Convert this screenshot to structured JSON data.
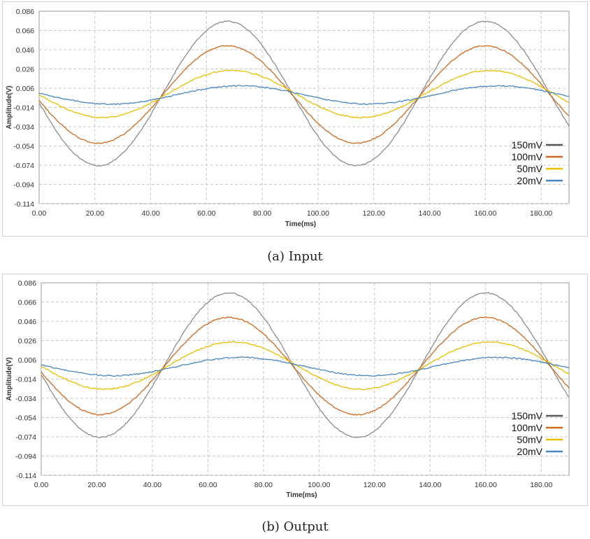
{
  "captions": {
    "input": "(a) Input",
    "output": "(b) Output"
  },
  "colors": {
    "150mV": "#8c8c8c",
    "100mV": "#d2691e",
    "50mV": "#e8c000",
    "20mV": "#4a86c0",
    "legend150": "#595959",
    "grid": "#c8c8c8",
    "axis": "#9a9a9a"
  },
  "chart_data": [
    {
      "type": "line",
      "title": "(a) Input",
      "xlabel": "Time(ms)",
      "ylabel": "Amplitude(V)",
      "xlim": [
        0,
        190
      ],
      "ylim": [
        -0.114,
        0.086
      ],
      "x_ticks": [
        "0.00",
        "20.00",
        "40.00",
        "60.00",
        "80.00",
        "100.00",
        "120.00",
        "140.00",
        "160.00",
        "180.00"
      ],
      "y_ticks": [
        "0.086",
        "0.066",
        "0.046",
        "0.026",
        "0.006",
        "-0.014",
        "-0.034",
        "-0.054",
        "-0.074",
        "-0.094",
        "-0.114"
      ],
      "legend_position": "right",
      "series": [
        {
          "name": "150mV",
          "amplitude": 0.075,
          "offset": 0.0005,
          "period_ms": 92.5,
          "peak_ms": 67.5
        },
        {
          "name": "100mV",
          "amplitude": 0.0505,
          "offset": -0.0005,
          "period_ms": 92.5,
          "peak_ms": 67.5
        },
        {
          "name": "50mV",
          "amplitude": 0.0245,
          "offset": 0.0,
          "period_ms": 92.5,
          "peak_ms": 69.0
        },
        {
          "name": "20mV",
          "amplitude": 0.0095,
          "offset": -0.001,
          "period_ms": 92.5,
          "peak_ms": 72.0
        }
      ]
    },
    {
      "type": "line",
      "title": "(b) Output",
      "xlabel": "Time(ms)",
      "ylabel": "Amplitude(V)",
      "xlim": [
        0,
        190
      ],
      "ylim": [
        -0.114,
        0.086
      ],
      "x_ticks": [
        "0.00",
        "20.00",
        "40.00",
        "60.00",
        "80.00",
        "100.00",
        "120.00",
        "140.00",
        "160.00",
        "180.00"
      ],
      "y_ticks": [
        "0.086",
        "0.066",
        "0.046",
        "0.026",
        "0.006",
        "-0.014",
        "-0.034",
        "-0.054",
        "-0.074",
        "-0.094",
        "-0.114"
      ],
      "legend_position": "right",
      "series": [
        {
          "name": "150mV",
          "amplitude": 0.075,
          "offset": 0.0005,
          "period_ms": 92.5,
          "peak_ms": 67.5
        },
        {
          "name": "100mV",
          "amplitude": 0.0505,
          "offset": -0.0005,
          "period_ms": 92.5,
          "peak_ms": 67.5
        },
        {
          "name": "50mV",
          "amplitude": 0.0245,
          "offset": 0.0,
          "period_ms": 92.5,
          "peak_ms": 69.0
        },
        {
          "name": "20mV",
          "amplitude": 0.0095,
          "offset": -0.001,
          "period_ms": 92.5,
          "peak_ms": 72.0
        }
      ]
    }
  ]
}
